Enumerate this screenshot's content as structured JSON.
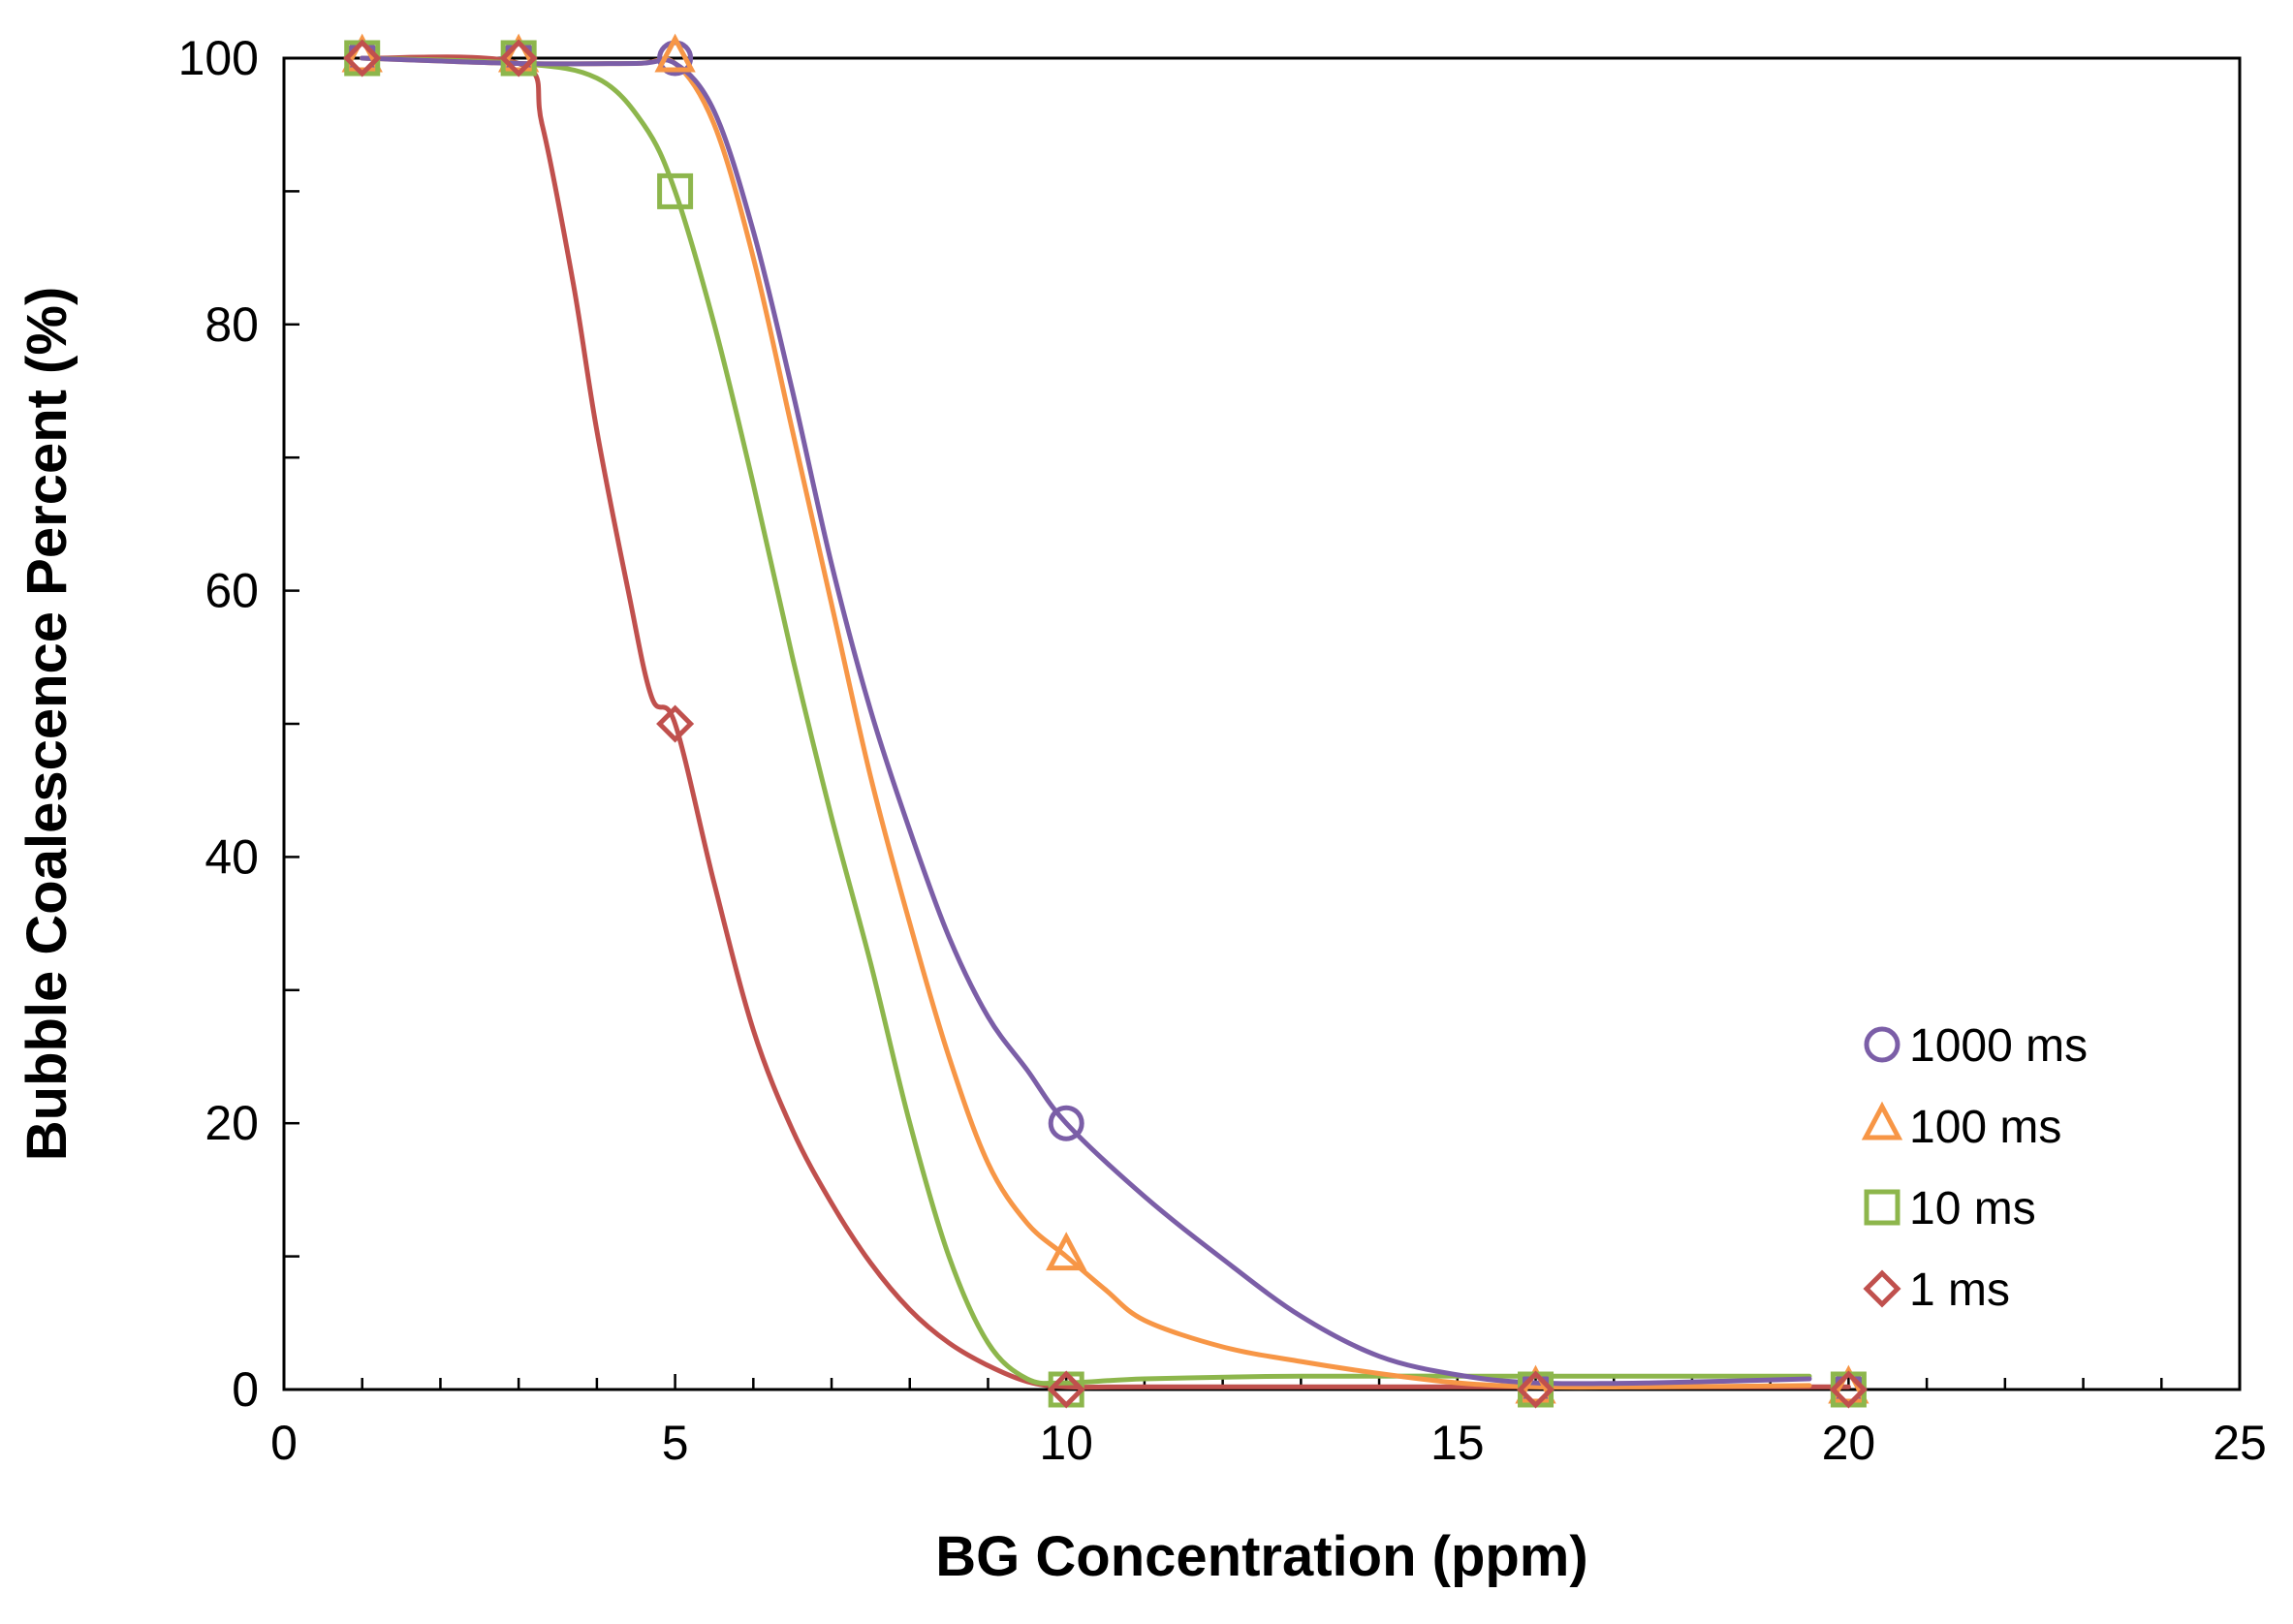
{
  "chart_data": {
    "type": "scatter",
    "title": "",
    "xlabel": "BG Concentration (ppm)",
    "ylabel": "Bubble Coalescence Percent (%)",
    "xlim": [
      0,
      25
    ],
    "ylim": [
      0,
      100
    ],
    "xticks": [
      0,
      5,
      10,
      15,
      20,
      25
    ],
    "yticks": [
      0,
      20,
      40,
      60,
      80,
      100
    ],
    "xtick_labels": [
      "0",
      "5",
      "10",
      "15",
      "20",
      "25"
    ],
    "ytick_labels": [
      "0",
      "20",
      "40",
      "60",
      "80",
      "100"
    ],
    "x_minor_step": 1,
    "y_minor_step": 10,
    "grid": false,
    "legend_position": "bottom-right",
    "series": [
      {
        "name": "1000 ms",
        "marker": "circle",
        "color": "#7B5EA7",
        "points": [
          [
            1,
            100
          ],
          [
            3,
            100
          ],
          [
            5,
            100
          ],
          [
            10,
            20
          ],
          [
            16,
            0
          ],
          [
            20,
            0
          ]
        ],
        "curve": [
          [
            1,
            100
          ],
          [
            3,
            99.6
          ],
          [
            4.5,
            99.6
          ],
          [
            5,
            99.6
          ],
          [
            5.5,
            96
          ],
          [
            6,
            87
          ],
          [
            6.5,
            75
          ],
          [
            7,
            62
          ],
          [
            7.5,
            51
          ],
          [
            8,
            42
          ],
          [
            8.5,
            34
          ],
          [
            9,
            28
          ],
          [
            9.5,
            24
          ],
          [
            10,
            20
          ],
          [
            11,
            14.5
          ],
          [
            12,
            9.8
          ],
          [
            13,
            5.5
          ],
          [
            14,
            2.5
          ],
          [
            15,
            1.1
          ],
          [
            16,
            0.5
          ],
          [
            17.5,
            0.5
          ],
          [
            19.5,
            0.8
          ]
        ]
      },
      {
        "name": "100 ms",
        "marker": "triangle",
        "color": "#F79646",
        "points": [
          [
            1,
            100
          ],
          [
            3,
            100
          ],
          [
            5,
            100
          ],
          [
            10,
            10
          ],
          [
            16,
            0
          ],
          [
            20,
            0
          ]
        ],
        "curve": [
          [
            1,
            100
          ],
          [
            3,
            99.6
          ],
          [
            4.5,
            99.6
          ],
          [
            5,
            99.6
          ],
          [
            5.5,
            95
          ],
          [
            6,
            85
          ],
          [
            6.5,
            72
          ],
          [
            7,
            59
          ],
          [
            7.5,
            46
          ],
          [
            8,
            35
          ],
          [
            8.5,
            25
          ],
          [
            9,
            17
          ],
          [
            9.5,
            12.5
          ],
          [
            10,
            10
          ],
          [
            10.5,
            7.5
          ],
          [
            11,
            5.2
          ],
          [
            12,
            3.2
          ],
          [
            13,
            2.1
          ],
          [
            14,
            1.2
          ],
          [
            15,
            0.5
          ],
          [
            16,
            0.2
          ],
          [
            17.5,
            0.2
          ],
          [
            19.5,
            0.3
          ]
        ]
      },
      {
        "name": "10 ms",
        "marker": "square",
        "color": "#8DB64C",
        "points": [
          [
            1,
            100
          ],
          [
            3,
            100
          ],
          [
            5,
            90
          ],
          [
            10,
            0
          ],
          [
            16,
            0
          ],
          [
            20,
            0
          ]
        ],
        "curve": [
          [
            1,
            100
          ],
          [
            3,
            99.6
          ],
          [
            4,
            98.5
          ],
          [
            4.6,
            95
          ],
          [
            5,
            90
          ],
          [
            5.5,
            80
          ],
          [
            6,
            68
          ],
          [
            6.5,
            55
          ],
          [
            7,
            43
          ],
          [
            7.5,
            32
          ],
          [
            8,
            20
          ],
          [
            8.5,
            10
          ],
          [
            9,
            3.5
          ],
          [
            9.5,
            0.8
          ],
          [
            10,
            0.5
          ],
          [
            11,
            0.8
          ],
          [
            13,
            1
          ],
          [
            16,
            1
          ],
          [
            18,
            1
          ],
          [
            19.5,
            1
          ]
        ]
      },
      {
        "name": "1 ms",
        "marker": "diamond",
        "color": "#C0504D",
        "points": [
          [
            1,
            100
          ],
          [
            3,
            100
          ],
          [
            5,
            50
          ],
          [
            10,
            0
          ],
          [
            16,
            0
          ],
          [
            20,
            0
          ]
        ],
        "curve": [
          [
            1,
            100
          ],
          [
            3,
            99.6
          ],
          [
            3.3,
            95
          ],
          [
            3.7,
            83
          ],
          [
            4,
            72
          ],
          [
            4.4,
            60
          ],
          [
            4.7,
            52
          ],
          [
            5,
            50
          ],
          [
            5.5,
            38
          ],
          [
            6,
            27
          ],
          [
            6.5,
            19.5
          ],
          [
            7,
            14
          ],
          [
            7.5,
            9.5
          ],
          [
            8,
            6
          ],
          [
            8.5,
            3.5
          ],
          [
            9,
            1.8
          ],
          [
            9.5,
            0.6
          ],
          [
            10,
            0.2
          ],
          [
            11,
            0.2
          ],
          [
            16,
            0.2
          ],
          [
            20,
            0.2
          ]
        ]
      }
    ]
  }
}
